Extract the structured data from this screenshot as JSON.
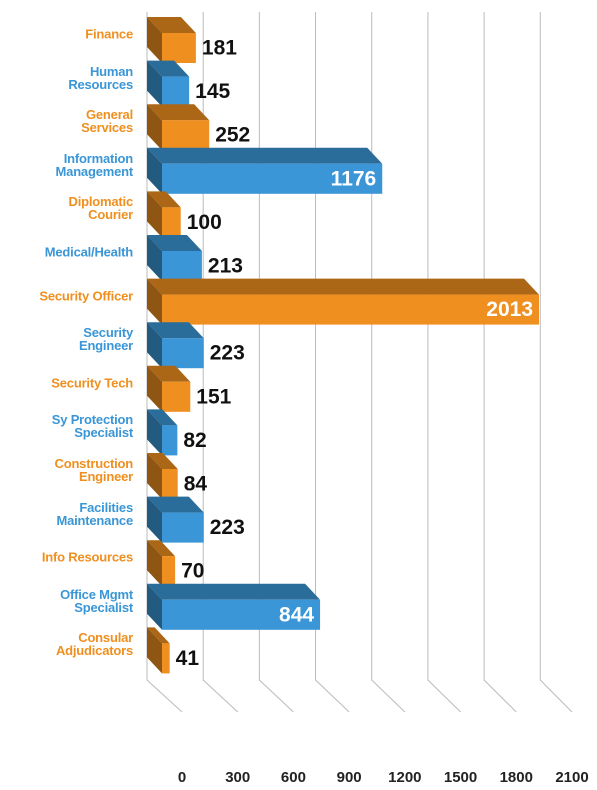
{
  "chart_data": {
    "type": "bar3d",
    "categories": [
      "Finance",
      "Human\nResources",
      "General\nServices",
      "Information\nManagement",
      "Diplomatic\nCourier",
      "Medical/Health",
      "Security Officer",
      "Security\nEngineer",
      "Security Tech",
      "Sy Protection\nSpecialist",
      "Construction\nEngineer",
      "Facilities\nMaintenance",
      "Info Resources",
      "Office Mgmt\nSpecialist",
      "Consular\nAdjudicators"
    ],
    "values": [
      181,
      145,
      252,
      1176,
      100,
      213,
      2013,
      223,
      151,
      82,
      84,
      223,
      70,
      844,
      41
    ],
    "colors": [
      "#ef8f1f",
      "#3a96d6",
      "#ef8f1f",
      "#3a96d6",
      "#ef8f1f",
      "#3a96d6",
      "#ef8f1f",
      "#3a96d6",
      "#ef8f1f",
      "#3a96d6",
      "#ef8f1f",
      "#3a96d6",
      "#ef8f1f",
      "#3a96d6",
      "#ef8f1f"
    ],
    "xlim": [
      0,
      2100
    ],
    "xticks": [
      0,
      300,
      600,
      900,
      1200,
      1500,
      1800,
      2100
    ],
    "grid": true
  }
}
